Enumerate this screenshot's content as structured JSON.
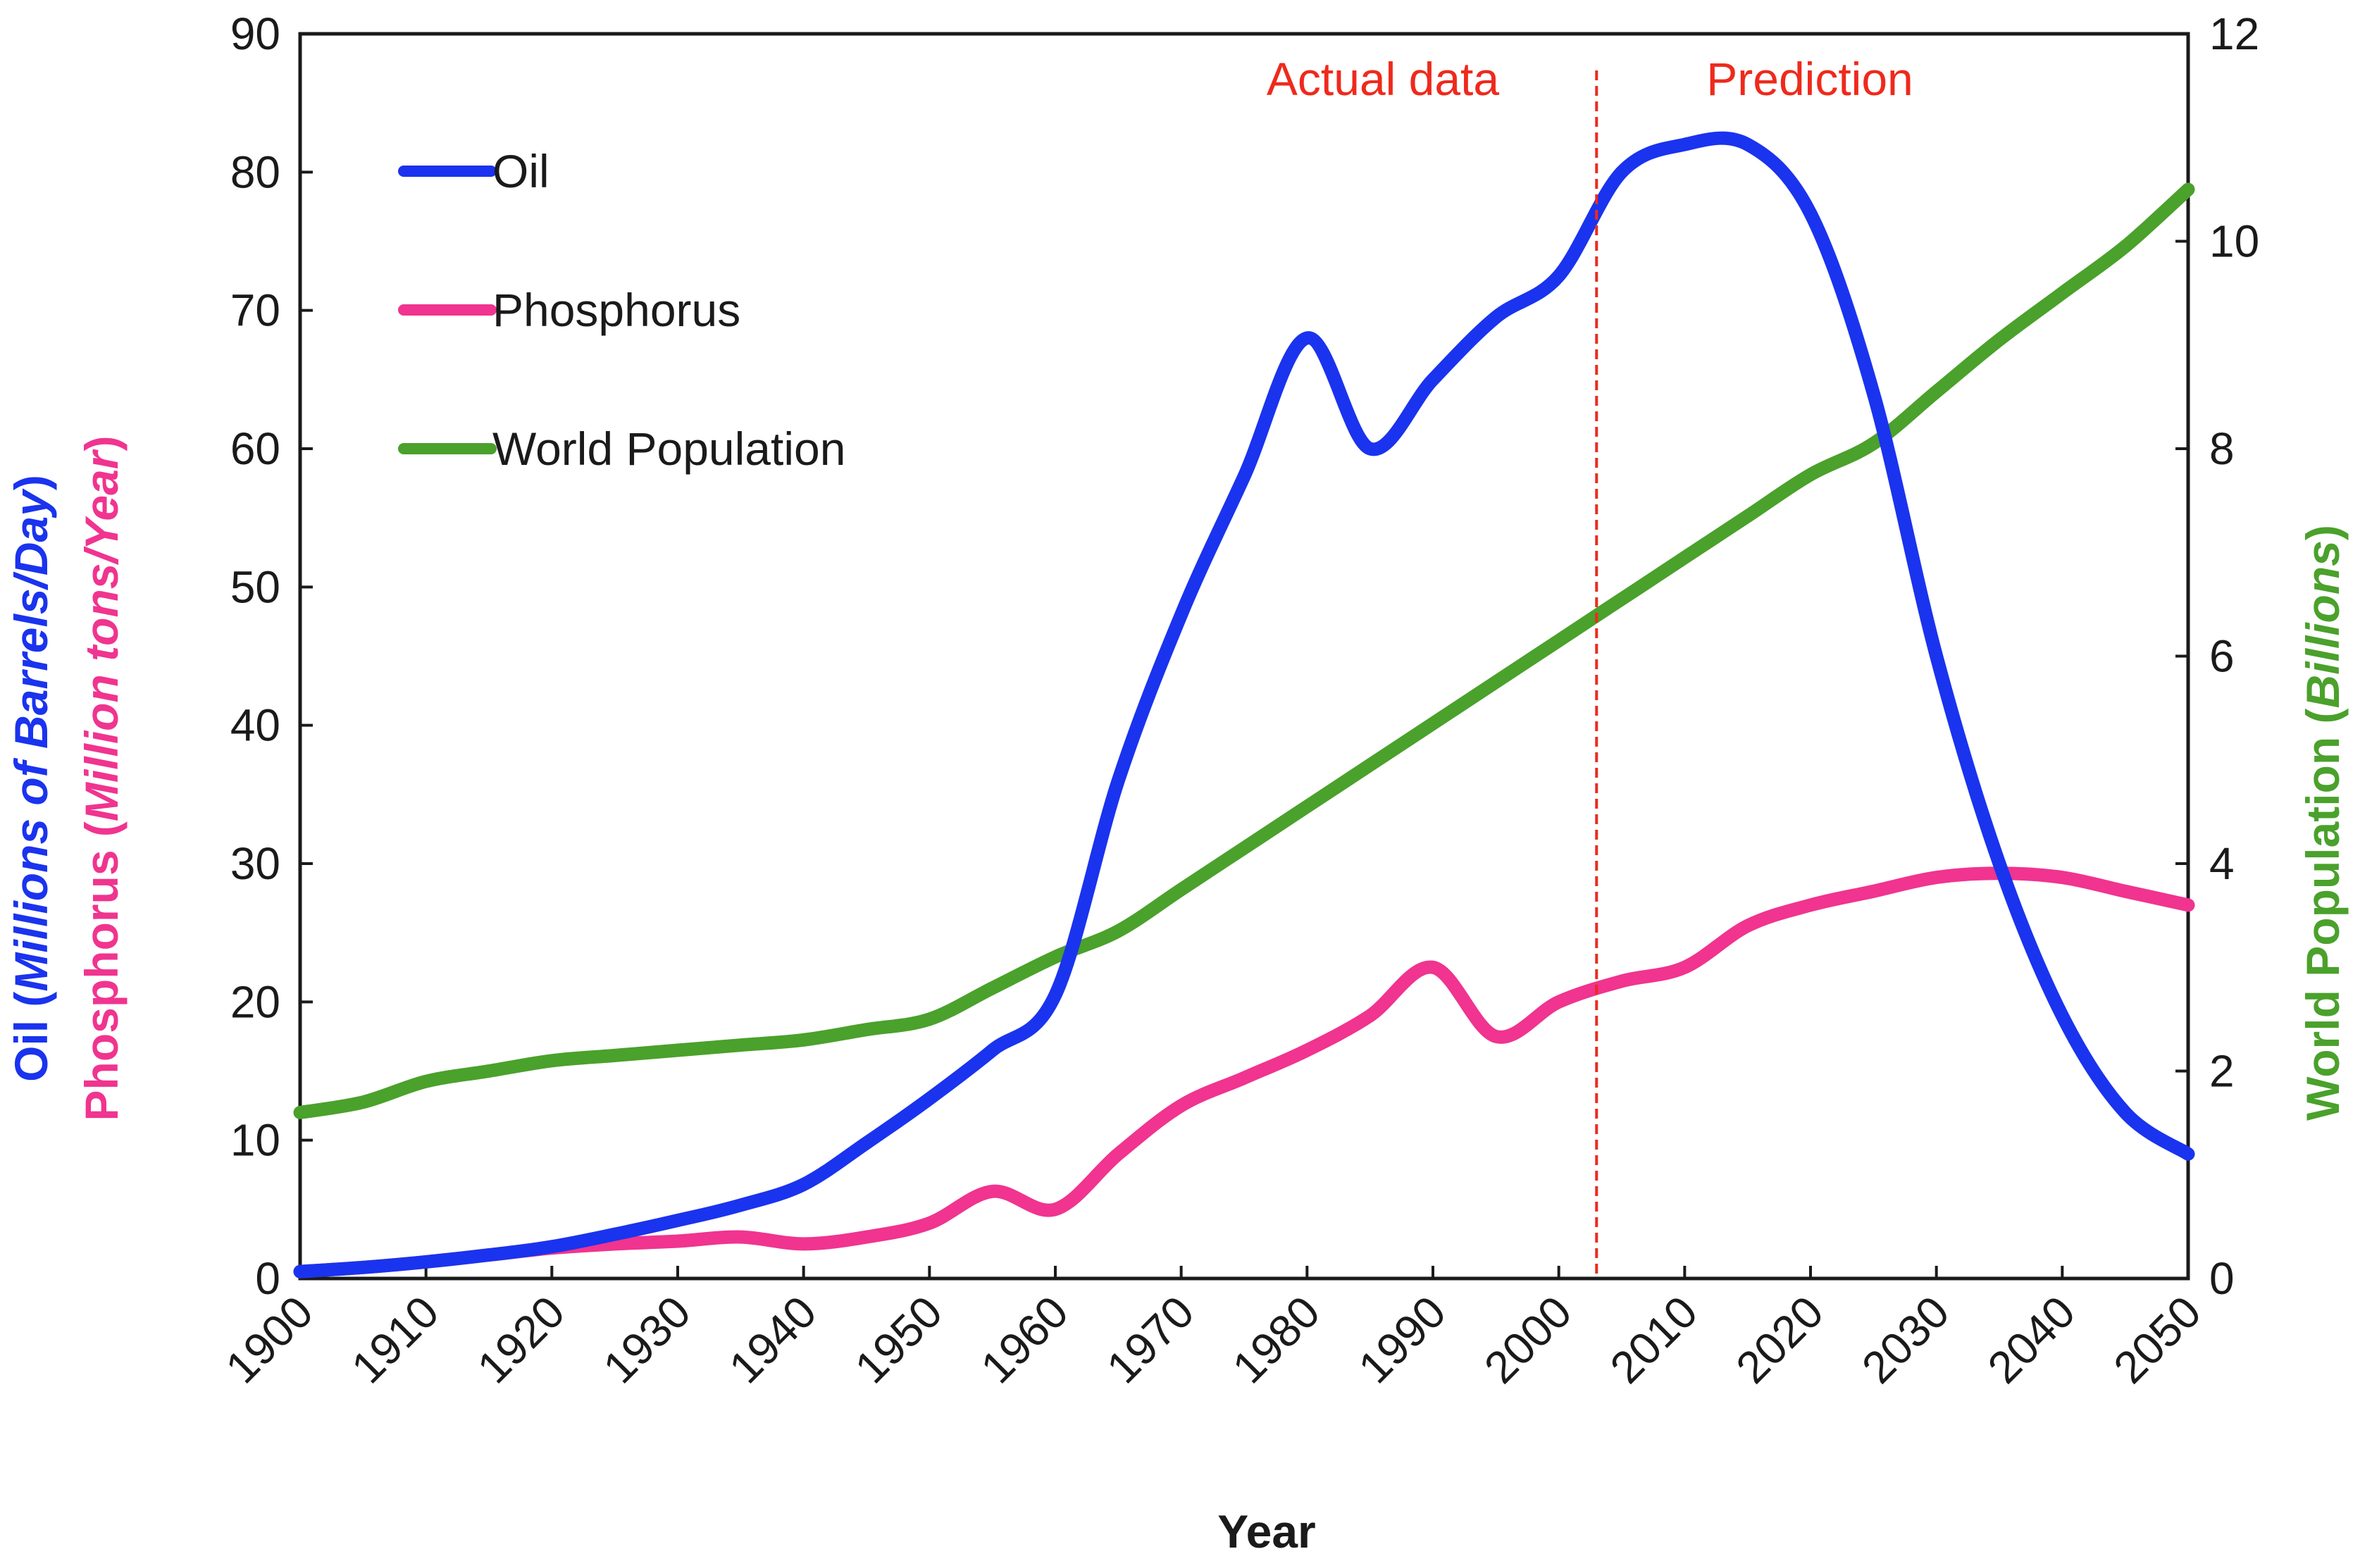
{
  "chart_data": {
    "type": "line",
    "xlabel": "Year",
    "xlim": [
      1900,
      2050
    ],
    "x_ticks": [
      "1900",
      "1910",
      "1920",
      "1930",
      "1940",
      "1950",
      "1960",
      "1970",
      "1980",
      "1990",
      "2000",
      "2010",
      "2020",
      "2030",
      "2040",
      "2050"
    ],
    "y_left": {
      "lim": [
        0,
        90
      ],
      "ticks": [
        "0",
        "10",
        "20",
        "30",
        "40",
        "50",
        "60",
        "70",
        "80",
        "90"
      ],
      "label_line1": {
        "prefix": "Oil (",
        "italic": "Millions of Barrels/Day",
        "suffix": ")"
      },
      "label_line2": {
        "prefix": "Phosphorus (",
        "italic": "Million tons/Year",
        "suffix": ")"
      }
    },
    "y_right": {
      "lim": [
        0,
        12
      ],
      "ticks": [
        "0",
        "2",
        "4",
        "6",
        "8",
        "10",
        "12"
      ],
      "label": {
        "prefix": "World Population (",
        "italic": "Billions",
        "suffix": ")"
      }
    },
    "divider_year": 2003,
    "annotations": {
      "left": "Actual data",
      "right": "Prediction"
    },
    "series": [
      {
        "name": "Oil",
        "axis": "left",
        "color": "#1a33ee",
        "x": [
          1900,
          1905,
          1910,
          1915,
          1920,
          1925,
          1930,
          1935,
          1940,
          1945,
          1950,
          1955,
          1960,
          1965,
          1970,
          1975,
          1980,
          1985,
          1990,
          1995,
          2000,
          2005,
          2010,
          2015,
          2020,
          2025,
          2030,
          2035,
          2040,
          2045,
          2050
        ],
        "values": [
          0.5,
          0.8,
          1.2,
          1.7,
          2.3,
          3.2,
          4.2,
          5.3,
          6.8,
          9.8,
          13,
          16.5,
          20.5,
          36,
          48,
          58,
          68,
          60,
          65,
          69.5,
          72.5,
          80,
          82,
          82,
          77,
          64,
          45,
          30,
          19,
          12,
          9
        ]
      },
      {
        "name": "Phosphorus",
        "axis": "left",
        "color": "#f0348f",
        "x": [
          1900,
          1905,
          1910,
          1915,
          1920,
          1925,
          1930,
          1935,
          1940,
          1945,
          1950,
          1955,
          1960,
          1965,
          1970,
          1975,
          1980,
          1985,
          1990,
          1995,
          2000,
          2005,
          2010,
          2015,
          2020,
          2025,
          2030,
          2035,
          2040,
          2045,
          2050
        ],
        "values": [
          0.5,
          0.8,
          1.2,
          1.7,
          2.2,
          2.5,
          2.7,
          3,
          2.5,
          3,
          4,
          6.3,
          5,
          9,
          12.5,
          14.5,
          16.5,
          19,
          22.5,
          17.5,
          20,
          21.5,
          22.5,
          25.5,
          27,
          28,
          29,
          29.3,
          29,
          28,
          27
        ]
      },
      {
        "name": "World Population",
        "axis": "right",
        "color": "#4aa12b",
        "x": [
          1900,
          1905,
          1910,
          1915,
          1920,
          1925,
          1930,
          1935,
          1940,
          1945,
          1950,
          1955,
          1960,
          1965,
          1970,
          1975,
          1980,
          1985,
          1990,
          1995,
          2000,
          2005,
          2010,
          2015,
          2020,
          2025,
          2030,
          2035,
          2040,
          2045,
          2050
        ],
        "values": [
          1.6,
          1.7,
          1.9,
          2.0,
          2.1,
          2.15,
          2.2,
          2.25,
          2.3,
          2.4,
          2.5,
          2.8,
          3.1,
          3.35,
          3.75,
          4.15,
          4.55,
          4.95,
          5.35,
          5.75,
          6.15,
          6.55,
          6.95,
          7.35,
          7.75,
          8.05,
          8.55,
          9.05,
          9.5,
          9.95,
          10.5
        ]
      }
    ]
  }
}
